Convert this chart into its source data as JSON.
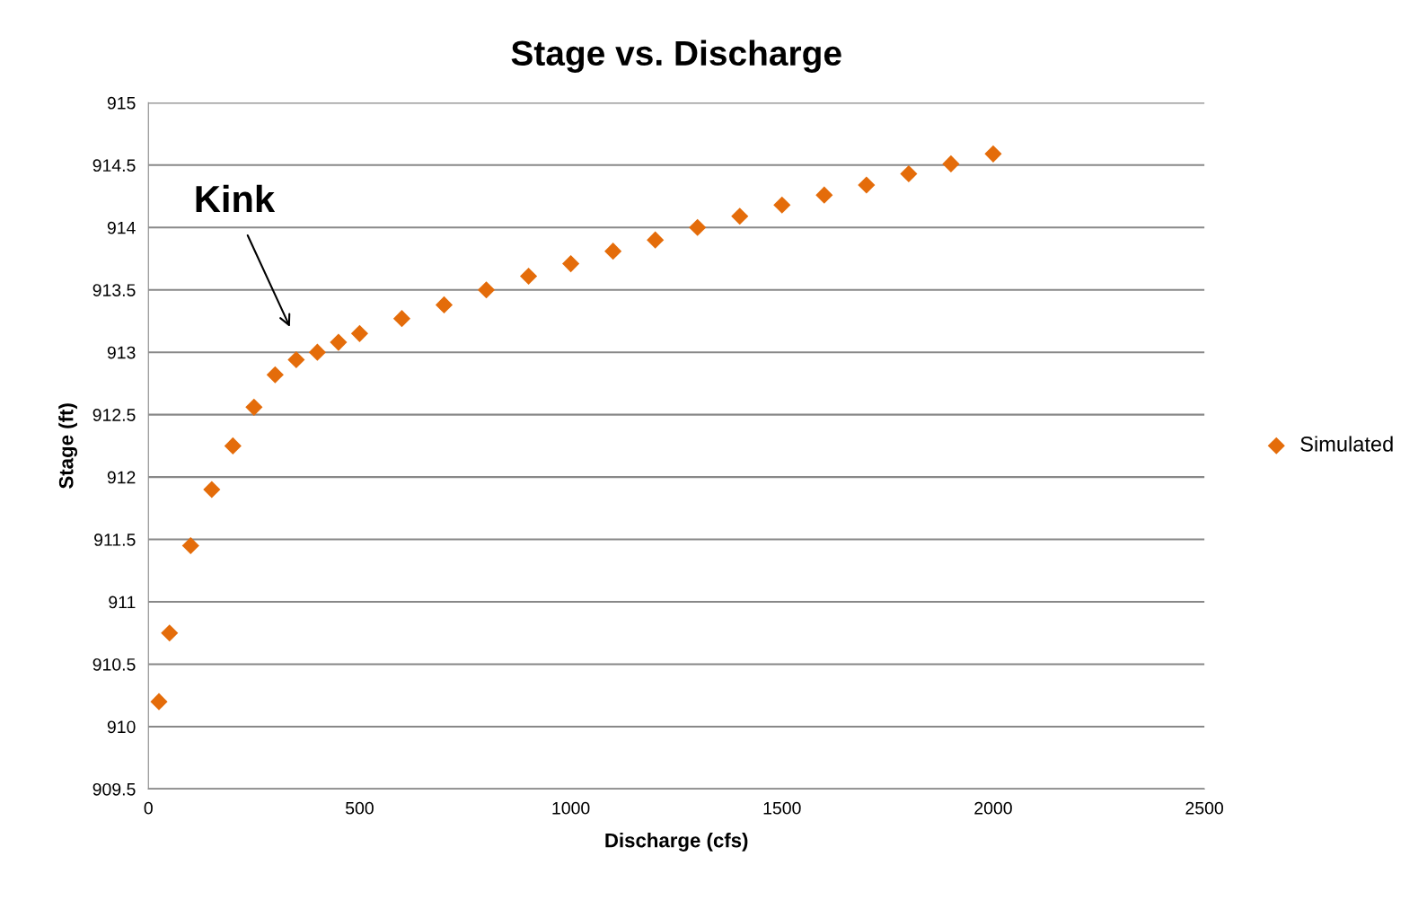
{
  "chart_data": {
    "type": "scatter",
    "title": "Stage vs. Discharge",
    "xlabel": "Discharge (cfs)",
    "ylabel": "Stage (ft)",
    "x": [
      25,
      50,
      100,
      150,
      200,
      250,
      300,
      350,
      400,
      450,
      500,
      600,
      700,
      800,
      900,
      1000,
      1100,
      1200,
      1300,
      1400,
      1500,
      1600,
      1700,
      1800,
      1900,
      2000
    ],
    "series": [
      {
        "name": "Simulated",
        "color": "#e46c0a",
        "values": [
          910.2,
          910.75,
          911.45,
          911.9,
          912.25,
          912.56,
          912.82,
          912.94,
          913.0,
          913.08,
          913.15,
          913.27,
          913.38,
          913.5,
          913.61,
          913.71,
          913.81,
          913.9,
          914.0,
          914.09,
          914.18,
          914.26,
          914.34,
          914.43,
          914.51,
          914.59
        ]
      }
    ],
    "xlim": [
      0,
      2500
    ],
    "xticks": [
      0,
      500,
      1000,
      1500,
      2000,
      2500
    ],
    "ylim": [
      909.5,
      915
    ],
    "yticks": [
      909.5,
      910,
      910.5,
      911,
      911.5,
      912,
      912.5,
      913,
      913.5,
      914,
      914.5,
      915
    ],
    "grid": "y",
    "legend": "right",
    "marker": "diamond",
    "annotations": [
      "Kink"
    ]
  }
}
